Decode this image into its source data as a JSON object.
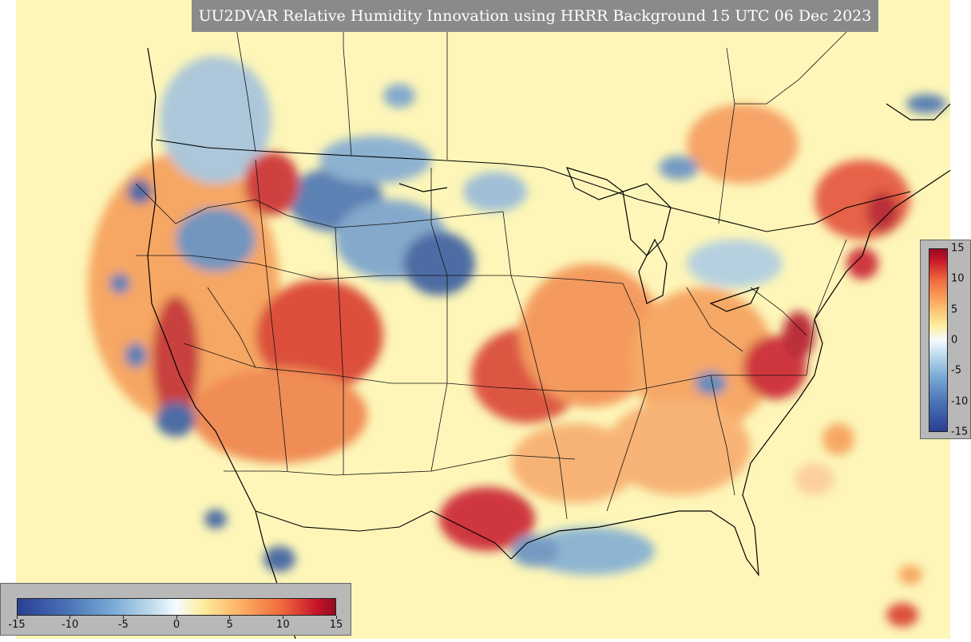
{
  "title": "UU2DVAR Relative Humidity Innovation using HRRR Background 15 UTC 06 Dec 2023",
  "colorbar": {
    "ticks": [
      "-15",
      "-10",
      "-5",
      "0",
      "5",
      "10",
      "15"
    ],
    "min": -15,
    "max": 15,
    "colors": [
      "#2a3f94",
      "#4a73b6",
      "#7aaad6",
      "#bddcec",
      "#f6fbff",
      "#fdeea0",
      "#fdb163",
      "#f06a3e",
      "#c7152a",
      "#930a1f"
    ]
  },
  "background_color": "#fdf6b8"
}
